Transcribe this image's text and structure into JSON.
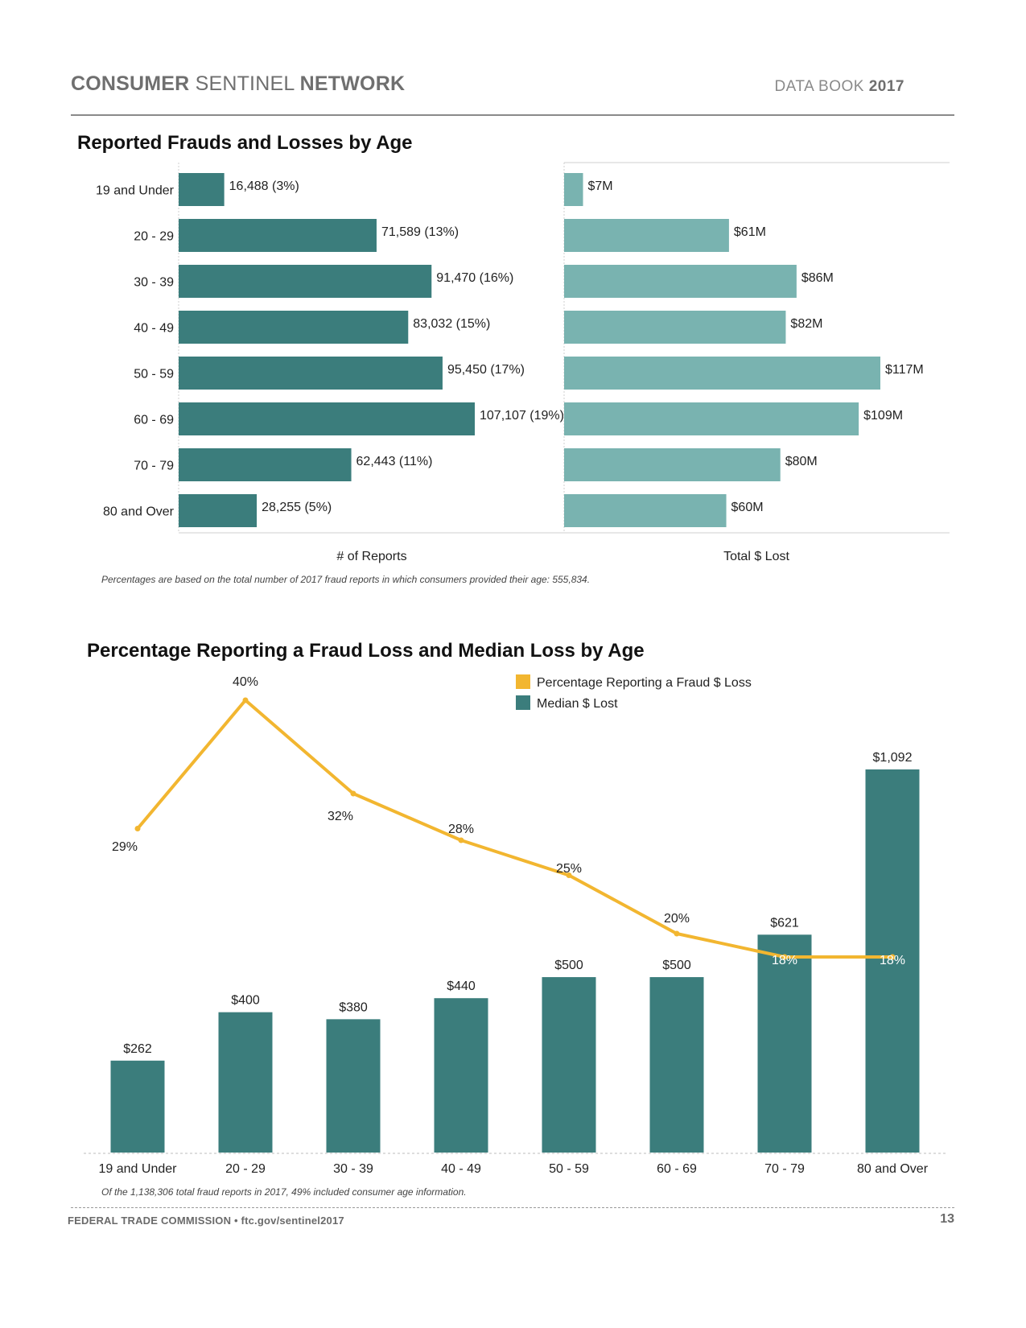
{
  "header": {
    "brand_bold_1": "CONSUMER",
    "brand_thin": " SENTINEL ",
    "brand_bold_2": "NETWORK",
    "databook_label": "DATA BOOK",
    "databook_year": "2017"
  },
  "footer": {
    "left": "FEDERAL TRADE COMMISSION • ftc.gov/sentinel2017",
    "page_number": "13"
  },
  "colors": {
    "teal_dark": "#3b7d7c",
    "teal_light": "#79b3b0",
    "gold": "#f2b630",
    "gray_text": "#6f6f6f"
  },
  "section1": {
    "title": "Reported Frauds and Losses by Age",
    "note": "Percentages are based on the total number of 2017 fraud reports in which consumers provided their age:  555,834."
  },
  "section2": {
    "title": "Percentage Reporting a Fraud Loss and Median Loss by Age",
    "note": "Of the 1,138,306 total fraud reports in 2017, 49% included consumer age information."
  },
  "chart_data": [
    {
      "type": "bar",
      "orientation": "horizontal",
      "title": "Reported Frauds and Losses by Age",
      "xlabel": "# of Reports",
      "categories": [
        "19 and Under",
        "20 - 29",
        "30 - 39",
        "40 - 49",
        "50 - 59",
        "60 - 69",
        "70 - 79",
        "80 and Over"
      ],
      "values": [
        16488,
        71589,
        91470,
        83032,
        95450,
        107107,
        62443,
        28255
      ],
      "labels": [
        "16,488 (3%)",
        "71,589 (13%)",
        "91,470 (16%)",
        "83,032 (15%)",
        "95,450 (17%)",
        "107,107 (19%)",
        "62,443 (11%)",
        "28,255 (5%)"
      ],
      "xlim": [
        0,
        150000
      ]
    },
    {
      "type": "bar",
      "orientation": "horizontal",
      "xlabel": "Total $ Lost",
      "categories": [
        "19 and Under",
        "20 - 29",
        "30 - 39",
        "40 - 49",
        "50 - 59",
        "60 - 69",
        "70 - 79",
        "80 and Over"
      ],
      "values": [
        7,
        61,
        86,
        82,
        117,
        109,
        80,
        60
      ],
      "units": "$M",
      "labels": [
        "$7M",
        "$61M",
        "$86M",
        "$82M",
        "$117M",
        "$109M",
        "$80M",
        "$60M"
      ],
      "xlim": [
        0,
        142
      ]
    },
    {
      "type": "bar+line",
      "title": "Percentage Reporting a Fraud Loss and Median Loss by Age",
      "categories": [
        "19 and Under",
        "20 - 29",
        "30 - 39",
        "40 - 49",
        "50 - 59",
        "60 - 69",
        "70 - 79",
        "80 and Over"
      ],
      "legend": [
        "Percentage Reporting a Fraud $ Loss",
        "Median $ Lost"
      ],
      "legend_position": "top-right",
      "series": [
        {
          "name": "Median $ Lost",
          "type": "bar",
          "values": [
            262,
            400,
            380,
            440,
            500,
            500,
            621,
            1092
          ],
          "labels": [
            "$262",
            "$400",
            "$380",
            "$440",
            "$500",
            "$500",
            "$621",
            "$1,092"
          ]
        },
        {
          "name": "Percentage Reporting a Fraud $ Loss",
          "type": "line",
          "values": [
            29,
            40,
            32,
            28,
            25,
            20,
            18,
            18
          ],
          "labels": [
            "29%",
            "40%",
            "32%",
            "28%",
            "25%",
            "20%",
            "18%",
            "18%"
          ]
        }
      ],
      "bar_ylim": [
        0,
        1180
      ],
      "line_ylim": [
        0,
        42
      ]
    }
  ]
}
